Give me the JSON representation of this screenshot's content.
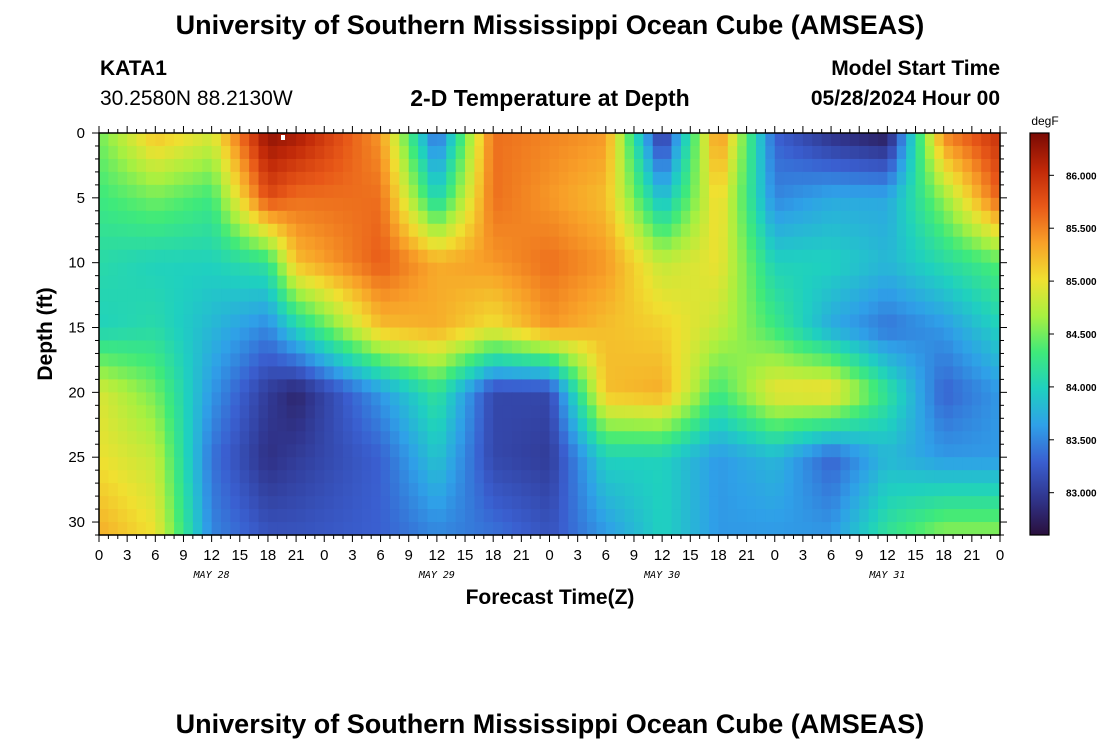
{
  "header": {
    "title": "University of Southern Mississippi Ocean Cube (AMSEAS)",
    "station": "KATA1",
    "coords": "30.2580N  88.2130W",
    "subtitle": "2-D Temperature at Depth",
    "model_label": "Model Start Time",
    "model_time": "05/28/2024 Hour 00"
  },
  "footer": {
    "title": "University of Southern Mississippi Ocean Cube (AMSEAS)"
  },
  "colors": {
    "colormap": [
      "#2a0f3c",
      "#30358d",
      "#3a5fd0",
      "#2fa0e8",
      "#1fd0c0",
      "#3fea7a",
      "#a8f040",
      "#f0e030",
      "#f8a028",
      "#e85818",
      "#c02808",
      "#7a0a04"
    ]
  },
  "chart_data": {
    "type": "heatmap",
    "title": "2-D Temperature at Depth",
    "xlabel": "Forecast Time(Z)",
    "ylabel": "Depth (ft)",
    "x_ticks": [
      "0",
      "3",
      "6",
      "9",
      "12",
      "15",
      "18",
      "21",
      "0",
      "3",
      "6",
      "9",
      "12",
      "15",
      "18",
      "21",
      "0",
      "3",
      "6",
      "9",
      "12",
      "15",
      "18",
      "21",
      "0",
      "3",
      "6",
      "9",
      "12",
      "15",
      "18",
      "21",
      "0"
    ],
    "x_range_hours": [
      0,
      96
    ],
    "day_labels": [
      {
        "label": "MAY 28",
        "hour": 12
      },
      {
        "label": "MAY 29",
        "hour": 36
      },
      {
        "label": "MAY 30",
        "hour": 60
      },
      {
        "label": "MAY 31",
        "hour": 84
      }
    ],
    "y_ticks": [
      "0",
      "5",
      "10",
      "15",
      "20",
      "25",
      "30"
    ],
    "y_range_ft": [
      0,
      31
    ],
    "colorbar": {
      "unit": "degF",
      "min": 82.6,
      "max": 86.4,
      "tick_values": [
        86.0,
        85.5,
        85.0,
        84.5,
        84.0,
        83.5,
        83.0
      ],
      "tick_labels": [
        "86.000",
        "85.500",
        "85.000",
        "84.500",
        "84.000",
        "83.500",
        "83.000"
      ]
    },
    "grid_hours": [
      0,
      6,
      12,
      18,
      21,
      30,
      36,
      42,
      48,
      54,
      60,
      66,
      72,
      78,
      84,
      90,
      96
    ],
    "grid_depths_ft": [
      0,
      5,
      10,
      15,
      20,
      25,
      31
    ],
    "temperature_degF": [
      [
        84.5,
        85.2,
        84.9,
        86.3,
        86.2,
        85.4,
        83.3,
        85.6,
        85.5,
        85.4,
        82.9,
        85.5,
        83.3,
        82.9,
        82.7,
        85.5,
        86.0
      ],
      [
        84.3,
        84.5,
        84.3,
        85.8,
        85.6,
        85.6,
        84.0,
        85.6,
        85.4,
        85.2,
        83.8,
        85.1,
        83.5,
        83.7,
        83.7,
        84.6,
        85.7
      ],
      [
        84.1,
        84.0,
        84.0,
        84.2,
        85.2,
        85.7,
        85.3,
        85.4,
        85.6,
        85.4,
        84.8,
        85.0,
        84.0,
        84.0,
        83.8,
        84.1,
        84.4
      ],
      [
        84.0,
        84.1,
        83.8,
        83.5,
        84.0,
        85.2,
        85.3,
        85.0,
        85.4,
        85.2,
        85.1,
        84.8,
        84.3,
        83.7,
        83.4,
        83.6,
        84.0
      ],
      [
        84.9,
        84.5,
        83.6,
        83.0,
        82.8,
        83.6,
        84.2,
        83.1,
        83.1,
        85.2,
        85.3,
        84.3,
        85.0,
        85.1,
        84.2,
        83.3,
        83.6
      ],
      [
        85.0,
        84.8,
        83.4,
        82.9,
        83.0,
        83.3,
        83.9,
        83.1,
        83.0,
        84.0,
        84.0,
        83.6,
        83.8,
        83.3,
        83.8,
        83.6,
        83.6
      ],
      [
        85.3,
        85.0,
        83.5,
        83.2,
        83.2,
        83.3,
        83.5,
        83.4,
        83.2,
        83.6,
        84.0,
        83.6,
        83.6,
        83.6,
        84.2,
        84.6,
        84.6
      ]
    ]
  }
}
